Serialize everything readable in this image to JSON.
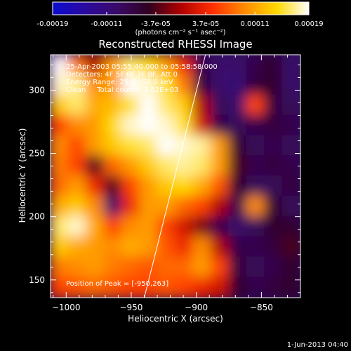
{
  "chart_data": {
    "type": "heatmap",
    "title": "Reconstructed RHESSI Image",
    "xlabel": "Heliocentric X (arcsec)",
    "ylabel": "Heliocentric Y (arcsec)",
    "xlim": [
      -1012,
      -820
    ],
    "ylim": [
      136,
      328
    ],
    "x_ticks": [
      -1000,
      -950,
      -900,
      -850
    ],
    "y_ticks": [
      150,
      200,
      250,
      300
    ],
    "x_tick_labels": [
      "−1000",
      "−950",
      "−900",
      "−850"
    ],
    "y_tick_labels": [
      "150",
      "200",
      "250",
      "300"
    ],
    "colorbar": {
      "unit_label": "(photons cm⁻² s⁻¹ asec⁻²)",
      "range": [
        -0.00019,
        0.00019
      ],
      "tick_values": [
        -0.00019,
        -0.00011,
        -3.7e-05,
        3.7e-05,
        0.00011,
        0.00019
      ],
      "tick_labels": [
        "-0.00019",
        "-0.00011",
        "-3.7e-05",
        "3.7e-05",
        "0.00011",
        "0.00019"
      ],
      "colors": [
        "#0b0bd0",
        "#2a0aa0",
        "#3a0a6a",
        "#300020",
        "#b00000",
        "#ff3000",
        "#ff8c00",
        "#ffd900",
        "#ffffff"
      ]
    },
    "info": [
      "25-Apr-2003 05:55:40.000 to 05:58:58.000",
      "Detectors: 4F 5F 6F 7F 8F, Att 0",
      "Energy Range: 25.0 - 50.0 keV",
      "Clean     Total counts: 3.52E+03"
    ],
    "peak_label": "Position of Peak = [-950,263]",
    "limb_line": [
      {
        "x": -940,
        "y": 136
      },
      {
        "x": -893,
        "y": 328
      }
    ],
    "grid": false,
    "intensity_grid": [
      [
        1.0,
        0.45,
        0.0,
        0.55,
        0.85,
        0.75,
        0.55,
        0.2,
        -0.4,
        -0.5,
        -0.5,
        -0.4,
        -0.3,
        -0.5
      ],
      [
        0.95,
        0.9,
        0.5,
        0.55,
        1.0,
        0.95,
        0.8,
        0.45,
        -0.35,
        -0.5,
        -0.55,
        -0.35,
        -0.3,
        -0.5
      ],
      [
        0.7,
        0.85,
        0.6,
        0.65,
        0.8,
        1.0,
        0.85,
        0.7,
        0.0,
        -0.45,
        -0.5,
        0.3,
        -0.35,
        -0.45
      ],
      [
        0.3,
        0.5,
        0.55,
        0.75,
        0.95,
        1.0,
        0.95,
        0.8,
        0.1,
        -0.4,
        -0.45,
        -0.4,
        -0.35,
        -0.4
      ],
      [
        0.5,
        0.3,
        0.55,
        0.7,
        0.8,
        0.85,
        1.0,
        0.95,
        0.9,
        0.55,
        -0.3,
        -0.45,
        -0.4,
        -0.45
      ],
      [
        0.45,
        0.3,
        -0.2,
        0.4,
        0.55,
        0.7,
        0.85,
        0.9,
        0.85,
        0.55,
        -0.2,
        -0.4,
        -0.35,
        -0.4
      ],
      [
        0.4,
        0.55,
        0.2,
        -0.2,
        0.3,
        0.55,
        0.7,
        0.75,
        0.6,
        0.35,
        -0.3,
        -0.45,
        -0.45,
        -0.35
      ],
      [
        0.6,
        0.7,
        0.5,
        -0.5,
        0.2,
        0.55,
        0.55,
        0.4,
        0.3,
        0.0,
        -0.4,
        0.5,
        -0.3,
        -0.45
      ],
      [
        0.85,
        0.95,
        0.6,
        0.3,
        0.5,
        0.55,
        0.3,
        0.1,
        -0.1,
        -0.4,
        -0.5,
        -0.45,
        -0.3,
        -0.3
      ],
      [
        0.7,
        0.6,
        0.55,
        0.5,
        0.6,
        0.55,
        0.35,
        0.2,
        0.5,
        0.0,
        -0.4,
        -0.4,
        -0.35,
        -0.2
      ],
      [
        0.45,
        0.5,
        0.55,
        0.45,
        0.4,
        0.35,
        0.4,
        0.4,
        0.55,
        0.3,
        -0.35,
        -0.45,
        -0.4,
        -0.3
      ],
      [
        0.3,
        0.35,
        0.4,
        0.35,
        0.3,
        0.3,
        0.35,
        0.3,
        0.2,
        0.1,
        -0.3,
        -0.4,
        -0.35,
        -0.3
      ]
    ]
  },
  "footer": {
    "timestamp": "1-Jun-2013 04:40"
  }
}
